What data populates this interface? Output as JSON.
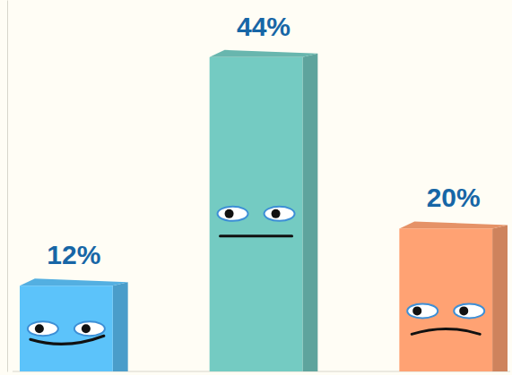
{
  "chart_data": {
    "type": "bar",
    "categories": [
      null,
      null,
      null
    ],
    "values": [
      12,
      44,
      20
    ],
    "value_labels": [
      "12%",
      "44%",
      "20%"
    ],
    "colors": [
      "#5cc3fa",
      "#74cbc2",
      "#ffa273"
    ],
    "ylim": [
      0,
      52
    ],
    "data_labels": true,
    "tick_labels": false,
    "grid": false
  }
}
